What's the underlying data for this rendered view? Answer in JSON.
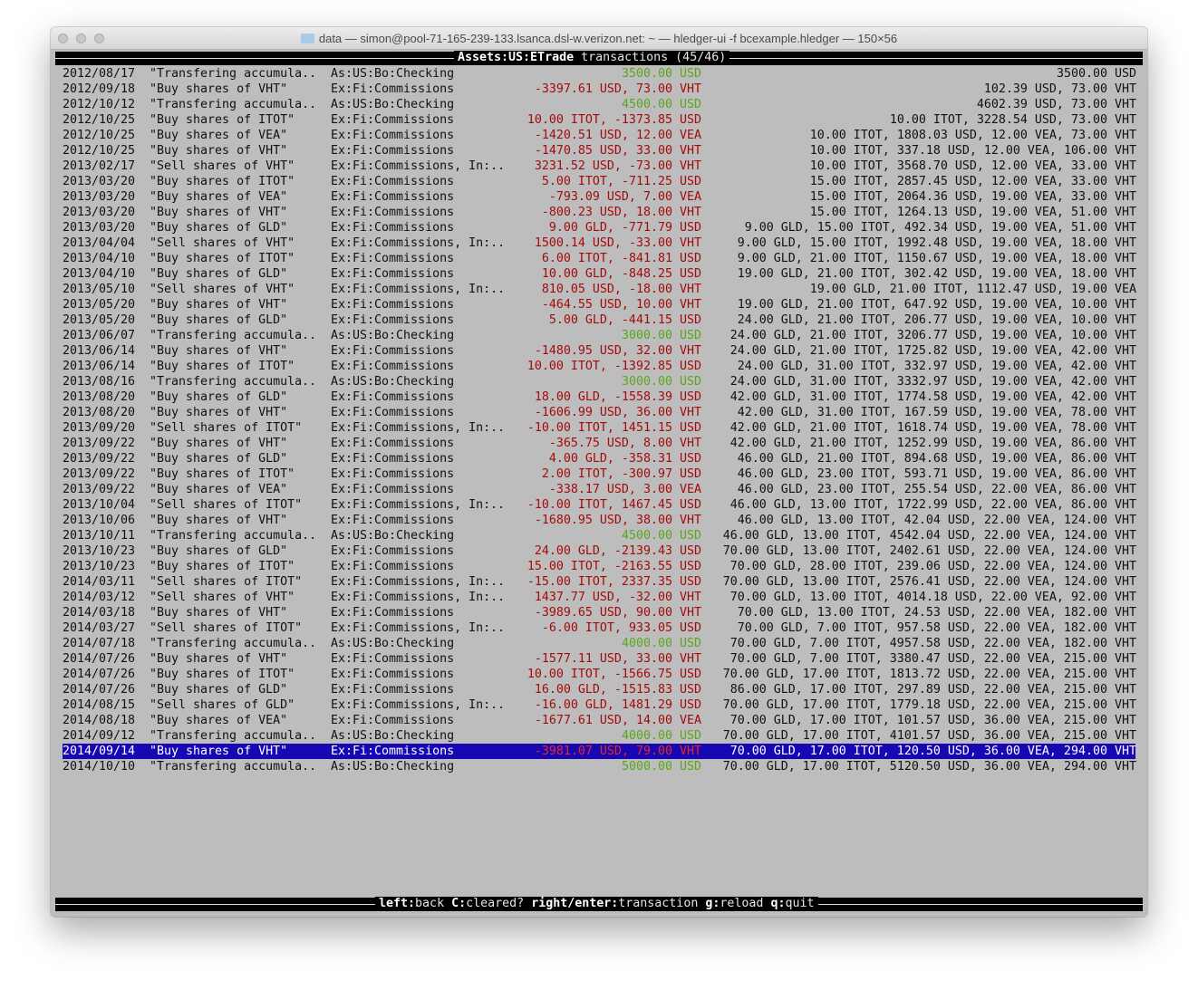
{
  "window": {
    "title": "data — simon@pool-71-165-239-133.lsanca.dsl-w.verizon.net: ~ — hledger-ui -f bcexample.hledger — 150×56"
  },
  "colors": {
    "background": "#bdbdbd",
    "positive_amount": "#5aa51a",
    "negative_amount": "#a50a0a",
    "selection": "#1808b4"
  },
  "header": {
    "account": "Assets:US:ETrade",
    "label": "transactions (45/46)"
  },
  "rows": [
    {
      "date": "2012/08/17",
      "desc": "\"Transfering accumula..",
      "acct": "As:US:Bo:Checking",
      "amt": "3500.00 USD",
      "bal": "3500.00 USD",
      "pos": true
    },
    {
      "date": "2012/09/18",
      "desc": "\"Buy shares of VHT\"",
      "acct": "Ex:Fi:Commissions",
      "amt": "-3397.61 USD, 73.00 VHT",
      "bal": "102.39 USD, 73.00 VHT"
    },
    {
      "date": "2012/10/12",
      "desc": "\"Transfering accumula..",
      "acct": "As:US:Bo:Checking",
      "amt": "4500.00 USD",
      "bal": "4602.39 USD, 73.00 VHT",
      "pos": true
    },
    {
      "date": "2012/10/25",
      "desc": "\"Buy shares of ITOT\"",
      "acct": "Ex:Fi:Commissions",
      "amt": "10.00 ITOT, -1373.85 USD",
      "bal": "10.00 ITOT, 3228.54 USD, 73.00 VHT"
    },
    {
      "date": "2012/10/25",
      "desc": "\"Buy shares of VEA\"",
      "acct": "Ex:Fi:Commissions",
      "amt": "-1420.51 USD, 12.00 VEA",
      "bal": "10.00 ITOT, 1808.03 USD, 12.00 VEA, 73.00 VHT"
    },
    {
      "date": "2012/10/25",
      "desc": "\"Buy shares of VHT\"",
      "acct": "Ex:Fi:Commissions",
      "amt": "-1470.85 USD, 33.00 VHT",
      "bal": "10.00 ITOT, 337.18 USD, 12.00 VEA, 106.00 VHT"
    },
    {
      "date": "2013/02/17",
      "desc": "\"Sell shares of VHT\"",
      "acct": "Ex:Fi:Commissions, In:..",
      "amt": "3231.52 USD, -73.00 VHT",
      "bal": "10.00 ITOT, 3568.70 USD, 12.00 VEA, 33.00 VHT"
    },
    {
      "date": "2013/03/20",
      "desc": "\"Buy shares of ITOT\"",
      "acct": "Ex:Fi:Commissions",
      "amt": "5.00 ITOT, -711.25 USD",
      "bal": "15.00 ITOT, 2857.45 USD, 12.00 VEA, 33.00 VHT"
    },
    {
      "date": "2013/03/20",
      "desc": "\"Buy shares of VEA\"",
      "acct": "Ex:Fi:Commissions",
      "amt": "-793.09 USD, 7.00 VEA",
      "bal": "15.00 ITOT, 2064.36 USD, 19.00 VEA, 33.00 VHT"
    },
    {
      "date": "2013/03/20",
      "desc": "\"Buy shares of VHT\"",
      "acct": "Ex:Fi:Commissions",
      "amt": "-800.23 USD, 18.00 VHT",
      "bal": "15.00 ITOT, 1264.13 USD, 19.00 VEA, 51.00 VHT"
    },
    {
      "date": "2013/03/20",
      "desc": "\"Buy shares of GLD\"",
      "acct": "Ex:Fi:Commissions",
      "amt": "9.00 GLD, -771.79 USD",
      "bal": "9.00 GLD, 15.00 ITOT, 492.34 USD, 19.00 VEA, 51.00 VHT"
    },
    {
      "date": "2013/04/04",
      "desc": "\"Sell shares of VHT\"",
      "acct": "Ex:Fi:Commissions, In:..",
      "amt": "1500.14 USD, -33.00 VHT",
      "bal": "9.00 GLD, 15.00 ITOT, 1992.48 USD, 19.00 VEA, 18.00 VHT"
    },
    {
      "date": "2013/04/10",
      "desc": "\"Buy shares of ITOT\"",
      "acct": "Ex:Fi:Commissions",
      "amt": "6.00 ITOT, -841.81 USD",
      "bal": "9.00 GLD, 21.00 ITOT, 1150.67 USD, 19.00 VEA, 18.00 VHT"
    },
    {
      "date": "2013/04/10",
      "desc": "\"Buy shares of GLD\"",
      "acct": "Ex:Fi:Commissions",
      "amt": "10.00 GLD, -848.25 USD",
      "bal": "19.00 GLD, 21.00 ITOT, 302.42 USD, 19.00 VEA, 18.00 VHT"
    },
    {
      "date": "2013/05/10",
      "desc": "\"Sell shares of VHT\"",
      "acct": "Ex:Fi:Commissions, In:..",
      "amt": "810.05 USD, -18.00 VHT",
      "bal": "19.00 GLD, 21.00 ITOT, 1112.47 USD, 19.00 VEA"
    },
    {
      "date": "2013/05/20",
      "desc": "\"Buy shares of VHT\"",
      "acct": "Ex:Fi:Commissions",
      "amt": "-464.55 USD, 10.00 VHT",
      "bal": "19.00 GLD, 21.00 ITOT, 647.92 USD, 19.00 VEA, 10.00 VHT"
    },
    {
      "date": "2013/05/20",
      "desc": "\"Buy shares of GLD\"",
      "acct": "Ex:Fi:Commissions",
      "amt": "5.00 GLD, -441.15 USD",
      "bal": "24.00 GLD, 21.00 ITOT, 206.77 USD, 19.00 VEA, 10.00 VHT"
    },
    {
      "date": "2013/06/07",
      "desc": "\"Transfering accumula..",
      "acct": "As:US:Bo:Checking",
      "amt": "3000.00 USD",
      "bal": "24.00 GLD, 21.00 ITOT, 3206.77 USD, 19.00 VEA, 10.00 VHT",
      "pos": true
    },
    {
      "date": "2013/06/14",
      "desc": "\"Buy shares of VHT\"",
      "acct": "Ex:Fi:Commissions",
      "amt": "-1480.95 USD, 32.00 VHT",
      "bal": "24.00 GLD, 21.00 ITOT, 1725.82 USD, 19.00 VEA, 42.00 VHT"
    },
    {
      "date": "2013/06/14",
      "desc": "\"Buy shares of ITOT\"",
      "acct": "Ex:Fi:Commissions",
      "amt": "10.00 ITOT, -1392.85 USD",
      "bal": "24.00 GLD, 31.00 ITOT, 332.97 USD, 19.00 VEA, 42.00 VHT"
    },
    {
      "date": "2013/08/16",
      "desc": "\"Transfering accumula..",
      "acct": "As:US:Bo:Checking",
      "amt": "3000.00 USD",
      "bal": "24.00 GLD, 31.00 ITOT, 3332.97 USD, 19.00 VEA, 42.00 VHT",
      "pos": true
    },
    {
      "date": "2013/08/20",
      "desc": "\"Buy shares of GLD\"",
      "acct": "Ex:Fi:Commissions",
      "amt": "18.00 GLD, -1558.39 USD",
      "bal": "42.00 GLD, 31.00 ITOT, 1774.58 USD, 19.00 VEA, 42.00 VHT"
    },
    {
      "date": "2013/08/20",
      "desc": "\"Buy shares of VHT\"",
      "acct": "Ex:Fi:Commissions",
      "amt": "-1606.99 USD, 36.00 VHT",
      "bal": "42.00 GLD, 31.00 ITOT, 167.59 USD, 19.00 VEA, 78.00 VHT"
    },
    {
      "date": "2013/09/20",
      "desc": "\"Sell shares of ITOT\"",
      "acct": "Ex:Fi:Commissions, In:..",
      "amt": "-10.00 ITOT, 1451.15 USD",
      "bal": "42.00 GLD, 21.00 ITOT, 1618.74 USD, 19.00 VEA, 78.00 VHT"
    },
    {
      "date": "2013/09/22",
      "desc": "\"Buy shares of VHT\"",
      "acct": "Ex:Fi:Commissions",
      "amt": "-365.75 USD, 8.00 VHT",
      "bal": "42.00 GLD, 21.00 ITOT, 1252.99 USD, 19.00 VEA, 86.00 VHT"
    },
    {
      "date": "2013/09/22",
      "desc": "\"Buy shares of GLD\"",
      "acct": "Ex:Fi:Commissions",
      "amt": "4.00 GLD, -358.31 USD",
      "bal": "46.00 GLD, 21.00 ITOT, 894.68 USD, 19.00 VEA, 86.00 VHT"
    },
    {
      "date": "2013/09/22",
      "desc": "\"Buy shares of ITOT\"",
      "acct": "Ex:Fi:Commissions",
      "amt": "2.00 ITOT, -300.97 USD",
      "bal": "46.00 GLD, 23.00 ITOT, 593.71 USD, 19.00 VEA, 86.00 VHT"
    },
    {
      "date": "2013/09/22",
      "desc": "\"Buy shares of VEA\"",
      "acct": "Ex:Fi:Commissions",
      "amt": "-338.17 USD, 3.00 VEA",
      "bal": "46.00 GLD, 23.00 ITOT, 255.54 USD, 22.00 VEA, 86.00 VHT"
    },
    {
      "date": "2013/10/04",
      "desc": "\"Sell shares of ITOT\"",
      "acct": "Ex:Fi:Commissions, In:..",
      "amt": "-10.00 ITOT, 1467.45 USD",
      "bal": "46.00 GLD, 13.00 ITOT, 1722.99 USD, 22.00 VEA, 86.00 VHT"
    },
    {
      "date": "2013/10/06",
      "desc": "\"Buy shares of VHT\"",
      "acct": "Ex:Fi:Commissions",
      "amt": "-1680.95 USD, 38.00 VHT",
      "bal": "46.00 GLD, 13.00 ITOT, 42.04 USD, 22.00 VEA, 124.00 VHT"
    },
    {
      "date": "2013/10/11",
      "desc": "\"Transfering accumula..",
      "acct": "As:US:Bo:Checking",
      "amt": "4500.00 USD",
      "bal": "46.00 GLD, 13.00 ITOT, 4542.04 USD, 22.00 VEA, 124.00 VHT",
      "pos": true
    },
    {
      "date": "2013/10/23",
      "desc": "\"Buy shares of GLD\"",
      "acct": "Ex:Fi:Commissions",
      "amt": "24.00 GLD, -2139.43 USD",
      "bal": "70.00 GLD, 13.00 ITOT, 2402.61 USD, 22.00 VEA, 124.00 VHT"
    },
    {
      "date": "2013/10/23",
      "desc": "\"Buy shares of ITOT\"",
      "acct": "Ex:Fi:Commissions",
      "amt": "15.00 ITOT, -2163.55 USD",
      "bal": "70.00 GLD, 28.00 ITOT, 239.06 USD, 22.00 VEA, 124.00 VHT"
    },
    {
      "date": "2014/03/11",
      "desc": "\"Sell shares of ITOT\"",
      "acct": "Ex:Fi:Commissions, In:..",
      "amt": "-15.00 ITOT, 2337.35 USD",
      "bal": "70.00 GLD, 13.00 ITOT, 2576.41 USD, 22.00 VEA, 124.00 VHT"
    },
    {
      "date": "2014/03/12",
      "desc": "\"Sell shares of VHT\"",
      "acct": "Ex:Fi:Commissions, In:..",
      "amt": "1437.77 USD, -32.00 VHT",
      "bal": "70.00 GLD, 13.00 ITOT, 4014.18 USD, 22.00 VEA, 92.00 VHT"
    },
    {
      "date": "2014/03/18",
      "desc": "\"Buy shares of VHT\"",
      "acct": "Ex:Fi:Commissions",
      "amt": "-3989.65 USD, 90.00 VHT",
      "bal": "70.00 GLD, 13.00 ITOT, 24.53 USD, 22.00 VEA, 182.00 VHT"
    },
    {
      "date": "2014/03/27",
      "desc": "\"Sell shares of ITOT\"",
      "acct": "Ex:Fi:Commissions, In:..",
      "amt": "-6.00 ITOT, 933.05 USD",
      "bal": "70.00 GLD, 7.00 ITOT, 957.58 USD, 22.00 VEA, 182.00 VHT"
    },
    {
      "date": "2014/07/18",
      "desc": "\"Transfering accumula..",
      "acct": "As:US:Bo:Checking",
      "amt": "4000.00 USD",
      "bal": "70.00 GLD, 7.00 ITOT, 4957.58 USD, 22.00 VEA, 182.00 VHT",
      "pos": true
    },
    {
      "date": "2014/07/26",
      "desc": "\"Buy shares of VHT\"",
      "acct": "Ex:Fi:Commissions",
      "amt": "-1577.11 USD, 33.00 VHT",
      "bal": "70.00 GLD, 7.00 ITOT, 3380.47 USD, 22.00 VEA, 215.00 VHT"
    },
    {
      "date": "2014/07/26",
      "desc": "\"Buy shares of ITOT\"",
      "acct": "Ex:Fi:Commissions",
      "amt": "10.00 ITOT, -1566.75 USD",
      "bal": "70.00 GLD, 17.00 ITOT, 1813.72 USD, 22.00 VEA, 215.00 VHT"
    },
    {
      "date": "2014/07/26",
      "desc": "\"Buy shares of GLD\"",
      "acct": "Ex:Fi:Commissions",
      "amt": "16.00 GLD, -1515.83 USD",
      "bal": "86.00 GLD, 17.00 ITOT, 297.89 USD, 22.00 VEA, 215.00 VHT"
    },
    {
      "date": "2014/08/15",
      "desc": "\"Sell shares of GLD\"",
      "acct": "Ex:Fi:Commissions, In:..",
      "amt": "-16.00 GLD, 1481.29 USD",
      "bal": "70.00 GLD, 17.00 ITOT, 1779.18 USD, 22.00 VEA, 215.00 VHT"
    },
    {
      "date": "2014/08/18",
      "desc": "\"Buy shares of VEA\"",
      "acct": "Ex:Fi:Commissions",
      "amt": "-1677.61 USD, 14.00 VEA",
      "bal": "70.00 GLD, 17.00 ITOT, 101.57 USD, 36.00 VEA, 215.00 VHT"
    },
    {
      "date": "2014/09/12",
      "desc": "\"Transfering accumula..",
      "acct": "As:US:Bo:Checking",
      "amt": "4000.00 USD",
      "bal": "70.00 GLD, 17.00 ITOT, 4101.57 USD, 36.00 VEA, 215.00 VHT",
      "pos": true
    },
    {
      "date": "2014/09/14",
      "desc": "\"Buy shares of VHT\"",
      "acct": "Ex:Fi:Commissions",
      "amt": "-3981.07 USD, 79.00 VHT",
      "bal": "70.00 GLD, 17.00 ITOT, 120.50 USD, 36.00 VEA, 294.00 VHT",
      "selected": true
    },
    {
      "date": "2014/10/10",
      "desc": "\"Transfering accumula..",
      "acct": "As:US:Bo:Checking",
      "amt": "5000.00 USD",
      "bal": "70.00 GLD, 17.00 ITOT, 5120.50 USD, 36.00 VEA, 294.00 VHT",
      "pos": true
    }
  ],
  "footer": {
    "keys": [
      {
        "key": "left",
        "action": "back"
      },
      {
        "key": "C",
        "action": "cleared?"
      },
      {
        "key": "right/enter",
        "action": "transaction"
      },
      {
        "key": "g",
        "action": "reload"
      },
      {
        "key": "q",
        "action": "quit"
      }
    ]
  }
}
